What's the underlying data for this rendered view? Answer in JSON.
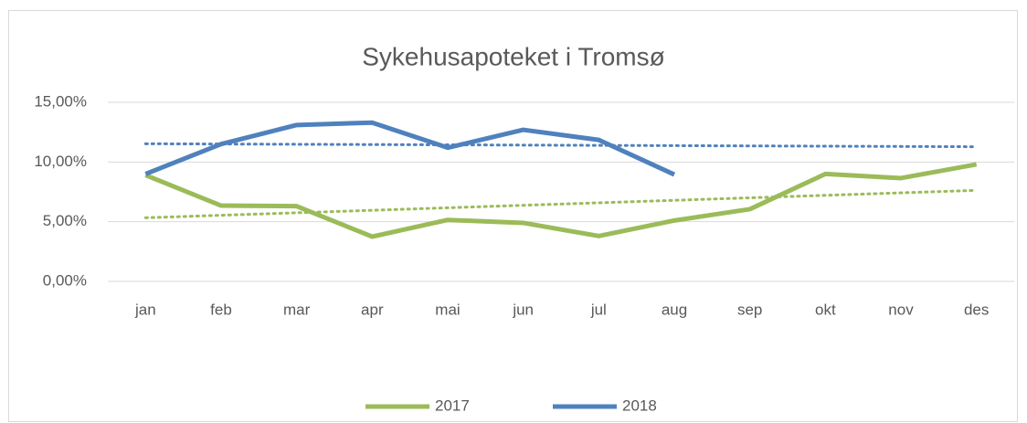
{
  "chart_data": {
    "type": "line",
    "title": "Sykehusapoteket i Tromsø",
    "categories": [
      "jan",
      "feb",
      "mar",
      "apr",
      "mai",
      "jun",
      "jul",
      "aug",
      "sep",
      "okt",
      "nov",
      "des"
    ],
    "series": [
      {
        "name": "2017",
        "color": "#9bbb59",
        "values": [
          8.9,
          6.35,
          6.3,
          3.75,
          5.15,
          4.9,
          3.8,
          5.1,
          6.05,
          9.0,
          8.65,
          9.8
        ]
      },
      {
        "name": "2018",
        "color": "#4f81bd",
        "values": [
          9.0,
          11.5,
          13.1,
          13.3,
          11.2,
          12.7,
          11.85,
          8.95,
          null,
          null,
          null,
          null
        ]
      }
    ],
    "ylim": [
      0,
      15
    ],
    "yticks": [
      {
        "value": 0,
        "label": "0,00%"
      },
      {
        "value": 5,
        "label": "5,00%"
      },
      {
        "value": 10,
        "label": "10,00%"
      },
      {
        "value": 15,
        "label": "15,00%"
      }
    ],
    "grid": true,
    "trendline": true,
    "legend": "bottom"
  }
}
